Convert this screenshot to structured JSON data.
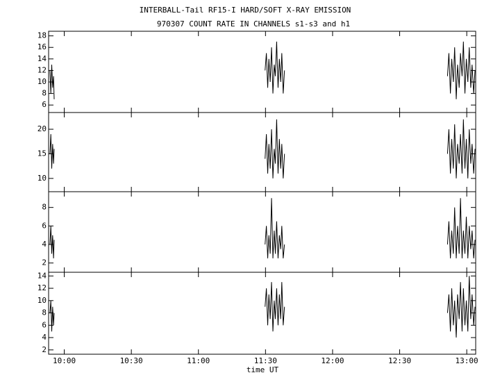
{
  "title": "INTERBALL-Tail RF15-I HARD/SOFT X-RAY EMISSION",
  "subtitle": "970307  COUNT RATE IN CHANNELS s1-s3 and h1",
  "xlabel": "time UT",
  "xlim": [
    593,
    784
  ],
  "xticks": [
    {
      "value": 600,
      "label": "10:00"
    },
    {
      "value": 630,
      "label": "10:30"
    },
    {
      "value": 660,
      "label": "11:00"
    },
    {
      "value": 690,
      "label": "11:30"
    },
    {
      "value": 720,
      "label": "12:00"
    },
    {
      "value": 750,
      "label": "12:30"
    },
    {
      "value": 780,
      "label": "13:00"
    }
  ],
  "x": [
    593.6,
    594.0,
    594.4,
    594.8,
    595.2,
    595.5,
    null,
    689.8,
    690.4,
    691.0,
    691.5,
    692.1,
    692.7,
    693.3,
    693.9,
    694.4,
    695.0,
    695.6,
    696.2,
    696.8,
    697.3,
    697.9,
    698.5,
    null,
    771.4,
    772.0,
    772.7,
    773.3,
    774.0,
    774.6,
    775.3,
    775.9,
    776.6,
    777.2,
    777.9,
    778.5,
    779.2,
    779.8,
    780.5,
    781.1,
    781.8,
    782.4,
    783.1,
    783.7
  ],
  "chart_data": [
    {
      "type": "line",
      "color": "#000000",
      "ylim": [
        4.7,
        18.8
      ],
      "yticks": [
        6,
        8,
        10,
        12,
        14,
        16,
        18
      ],
      "values": [
        12,
        8,
        13,
        9,
        11,
        7,
        null,
        12,
        15,
        9,
        14,
        10,
        16,
        8,
        13,
        11,
        17,
        9,
        14,
        10,
        15,
        8,
        12,
        null,
        11,
        15,
        8,
        14,
        10,
        16,
        7,
        13,
        9,
        15,
        11,
        17,
        8,
        14,
        10,
        16,
        9,
        13,
        8,
        12
      ]
    },
    {
      "type": "line",
      "color": "#000000",
      "ylim": [
        7.3,
        23.4
      ],
      "yticks": [
        10,
        15,
        20
      ],
      "values": [
        15,
        19,
        12,
        17,
        13,
        16,
        null,
        14,
        19,
        11,
        17,
        12,
        20,
        10,
        16,
        13,
        22,
        11,
        18,
        12,
        17,
        10,
        15,
        null,
        15,
        20,
        11,
        18,
        12,
        21,
        10,
        17,
        13,
        19,
        11,
        22,
        12,
        18,
        10,
        20,
        13,
        17,
        11,
        16
      ]
    },
    {
      "type": "line",
      "color": "#000000",
      "ylim": [
        1.0,
        9.7
      ],
      "yticks": [
        2,
        4,
        6,
        8
      ],
      "values": [
        4,
        6,
        3,
        5,
        2.5,
        4.5,
        null,
        4,
        6,
        2.5,
        5,
        3,
        9,
        2.5,
        5.5,
        3,
        6.5,
        2.5,
        5,
        3.5,
        6,
        2.5,
        4,
        null,
        4,
        6.5,
        2.5,
        5.5,
        3,
        8,
        2.5,
        6,
        3,
        9,
        2.5,
        5.5,
        3,
        7,
        2.5,
        6,
        3.5,
        5.5,
        2.5,
        4.5
      ]
    },
    {
      "type": "line",
      "color": "#000000",
      "ylim": [
        1.3,
        14.6
      ],
      "yticks": [
        2,
        4,
        6,
        8,
        10,
        12,
        14
      ],
      "values": [
        8,
        10,
        5,
        9,
        6,
        8,
        null,
        9,
        12,
        6,
        11,
        7,
        13,
        5,
        10,
        7,
        12,
        6,
        11,
        7,
        13,
        6,
        9,
        null,
        8,
        11,
        5,
        12,
        6,
        10,
        4,
        11,
        7,
        13,
        5,
        12,
        6,
        10,
        5,
        14,
        7,
        11,
        6,
        9
      ]
    }
  ]
}
